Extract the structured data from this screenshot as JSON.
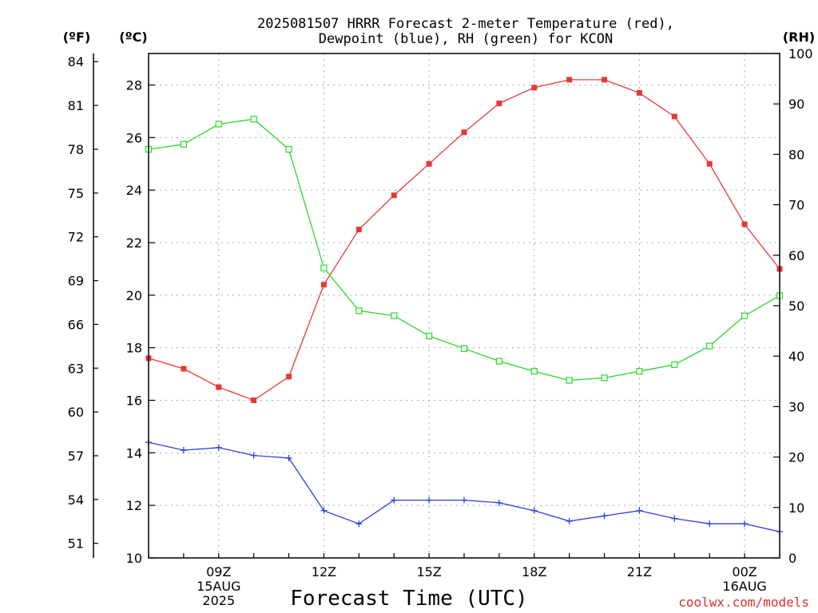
{
  "title_line1": "2025081507 HRRR Forecast 2-meter Temperature (red),",
  "title_line2": "Dewpoint (blue), RH (green) for KCON",
  "unit_f": "(ºF)",
  "unit_c": "(ºC)",
  "unit_rh": "(RH)",
  "xlabel": "Forecast Time (UTC)",
  "credit": "coolwx.com/models",
  "chart_data": {
    "type": "line",
    "title": "2025081507 HRRR Forecast 2-meter Temperature (red), Dewpoint (blue), RH (green) for KCON",
    "xlabel": "Forecast Time (UTC)",
    "x_hours_utc": [
      7,
      8,
      9,
      10,
      11,
      12,
      13,
      14,
      15,
      16,
      17,
      18,
      19,
      20,
      21,
      22,
      23,
      24,
      25
    ],
    "xlim": [
      7,
      25
    ],
    "x_ticks": [
      {
        "hour": 9,
        "lines": [
          "09Z",
          "15AUG",
          "2025"
        ]
      },
      {
        "hour": 12,
        "lines": [
          "12Z"
        ]
      },
      {
        "hour": 15,
        "lines": [
          "15Z"
        ]
      },
      {
        "hour": 18,
        "lines": [
          "18Z"
        ]
      },
      {
        "hour": 21,
        "lines": [
          "21Z"
        ]
      },
      {
        "hour": 24,
        "lines": [
          "00Z",
          "16AUG"
        ]
      }
    ],
    "y_left_c": {
      "label": "(ºC)",
      "ylim": [
        10,
        29.2
      ],
      "ticks": [
        "10",
        "12",
        "14",
        "16",
        "18",
        "20",
        "22",
        "24",
        "26",
        "28"
      ]
    },
    "y_left_f": {
      "label": "(ºF)",
      "ylim": [
        50,
        84.56
      ],
      "ticks": [
        "51",
        "54",
        "57",
        "60",
        "63",
        "66",
        "69",
        "72",
        "75",
        "78",
        "81",
        "84"
      ]
    },
    "y_right_rh": {
      "label": "(RH)",
      "ylim": [
        0,
        100
      ],
      "ticks": [
        "0",
        "10",
        "20",
        "30",
        "40",
        "50",
        "60",
        "70",
        "80",
        "90",
        "100"
      ]
    },
    "grid": true,
    "series": [
      {
        "id": "temperature",
        "axis": "c",
        "color": "#e83838",
        "marker": "filled-square",
        "values": [
          17.6,
          17.2,
          16.5,
          16.0,
          16.9,
          20.4,
          22.5,
          23.8,
          25.0,
          26.2,
          27.3,
          27.9,
          28.2,
          28.2,
          27.7,
          26.8,
          25.0,
          22.7,
          21.0
        ]
      },
      {
        "id": "dewpoint",
        "axis": "c",
        "color": "#2a40e0",
        "marker": "plus",
        "values": [
          14.4,
          14.1,
          14.2,
          13.9,
          13.8,
          11.8,
          11.3,
          12.2,
          12.2,
          12.2,
          12.1,
          11.8,
          11.4,
          11.6,
          11.8,
          11.5,
          11.3,
          11.3,
          11.0
        ]
      },
      {
        "id": "relative_humidity",
        "axis": "rh",
        "color": "#28d828",
        "marker": "open-square",
        "values": [
          81,
          82,
          86,
          87,
          81,
          57.5,
          49,
          48,
          44,
          41.5,
          39,
          37,
          35.2,
          35.7,
          37,
          38.3,
          42,
          48,
          52
        ]
      }
    ]
  }
}
